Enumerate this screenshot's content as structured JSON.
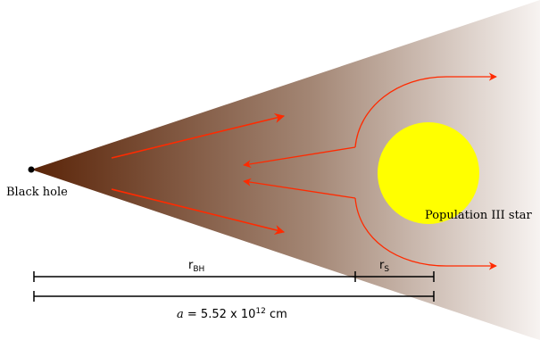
{
  "labels": {
    "black_hole": "Black hole",
    "star": "Population III star",
    "r_bh_main": "r",
    "r_bh_sub": "BH",
    "r_s_main": "r",
    "r_s_sub": "S",
    "a_symbol": "a",
    "a_eq": " = 5.52 x 10",
    "a_exp": "12",
    "a_unit": " cm"
  },
  "colors": {
    "cone_dark": "#5a2408",
    "cone_mid": "#a38674",
    "cone_light": "#f7f3f1",
    "arrow": "#ff2a00",
    "star_fill": "#ffff00",
    "scale_line": "#000000"
  }
}
